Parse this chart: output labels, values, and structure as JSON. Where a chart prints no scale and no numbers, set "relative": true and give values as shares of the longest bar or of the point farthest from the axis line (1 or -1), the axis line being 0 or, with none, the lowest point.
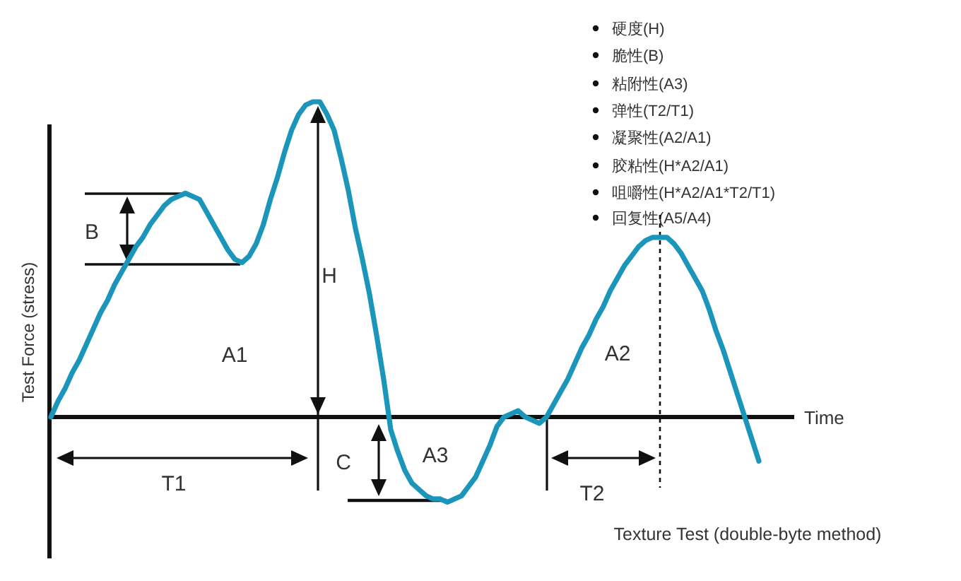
{
  "chart_data": {
    "type": "line",
    "relative": true,
    "xlabel": "Time",
    "ylabel": "Test Force (stress)",
    "color": "#1b96ba",
    "categories": [
      null,
      null,
      null,
      null,
      null,
      null,
      null,
      null,
      null,
      null,
      null,
      null,
      null,
      null,
      null,
      null,
      null,
      null,
      null,
      null,
      null,
      null,
      null,
      null,
      null,
      null,
      null,
      null,
      null,
      null,
      null,
      null,
      null,
      null,
      null,
      null,
      null,
      null,
      null,
      null,
      null,
      null,
      null,
      null,
      null,
      null,
      null,
      null,
      null,
      null,
      null,
      null,
      null,
      null,
      null,
      null,
      null,
      null,
      null,
      null,
      null,
      null,
      null,
      null,
      null,
      null,
      null,
      null,
      null,
      null,
      null,
      null,
      null,
      null,
      null,
      null,
      null,
      null,
      null,
      null,
      null,
      null,
      null,
      null,
      null,
      null,
      null,
      null,
      null,
      null,
      null,
      null,
      null,
      null,
      null,
      null,
      null,
      null,
      null,
      null,
      null
    ],
    "values": [
      0,
      0.05,
      0.09,
      0.14,
      0.18,
      0.23,
      0.28,
      0.33,
      0.37,
      0.42,
      0.46,
      0.5,
      0.54,
      0.57,
      0.61,
      0.64,
      0.67,
      0.69,
      0.7,
      0.71,
      0.7,
      0.69,
      0.65,
      0.61,
      0.57,
      0.53,
      0.5,
      0.49,
      0.51,
      0.55,
      0.61,
      0.69,
      0.76,
      0.84,
      0.91,
      0.96,
      0.99,
      1,
      1,
      0.96,
      0.91,
      0.82,
      0.72,
      0.6,
      0.5,
      0.39,
      0.26,
      0.12,
      -0.04,
      -0.11,
      -0.17,
      -0.21,
      -0.23,
      -0.25,
      -0.26,
      -0.26,
      -0.27,
      -0.26,
      -0.25,
      -0.22,
      -0.19,
      -0.14,
      -0.09,
      -0.03,
      0,
      0.01,
      0.02,
      0,
      -0.01,
      -0.02,
      0,
      0.04,
      0.08,
      0.12,
      0.17,
      0.22,
      0.26,
      0.31,
      0.35,
      0.4,
      0.44,
      0.48,
      0.51,
      0.54,
      0.56,
      0.57,
      0.57,
      0.57,
      0.55,
      0.52,
      0.48,
      0.44,
      0.4,
      0.34,
      0.27,
      0.21,
      0.14,
      0.07,
      0,
      -0.07,
      -0.14
    ],
    "annotations": [
      "硬度(H)",
      "脆性(B)",
      "粘附性(A3)",
      "弹性(T2/T1)",
      "凝聚性(A2/A1)",
      "胶粘性(H*A2/A1)",
      "咀嚼性(H*A2/A1*T2/T1)",
      "回复性(A5/A4)",
      "B",
      "H",
      "A1",
      "C",
      "A3",
      "T1",
      "T2",
      "A2",
      "Texture Test (double-byte method)"
    ]
  }
}
